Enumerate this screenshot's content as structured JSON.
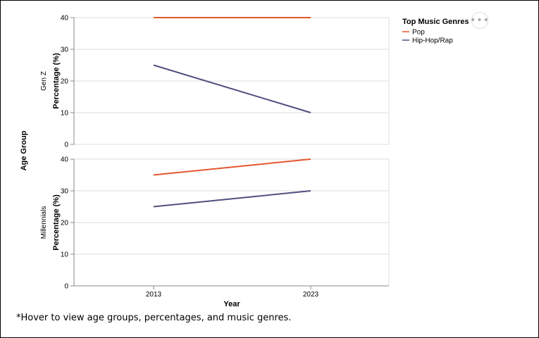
{
  "chart_data": {
    "type": "line",
    "x": [
      "2013",
      "2023"
    ],
    "xlabel": "Year",
    "ylabel": "Percentage (%)",
    "row_title": "Age Group",
    "ylim": [
      0,
      40
    ],
    "yticks": [
      "0",
      "10",
      "20",
      "30",
      "40"
    ],
    "grid": true,
    "legend": {
      "title": "Top Music Genres",
      "position": "top-right",
      "entries": [
        {
          "name": "Pop",
          "color": "#e4572e"
        },
        {
          "name": "Hip-Hop/Rap",
          "color": "#4f4f7f"
        }
      ]
    },
    "facets": [
      {
        "label": "Gen Z",
        "series": [
          {
            "name": "Pop",
            "values": [
              40,
              40
            ]
          },
          {
            "name": "Hip-Hop/Rap",
            "values": [
              25,
              10
            ]
          }
        ]
      },
      {
        "label": "Millennials",
        "series": [
          {
            "name": "Pop",
            "values": [
              35,
              40
            ]
          },
          {
            "name": "Hip-Hop/Rap",
            "values": [
              25,
              30
            ]
          }
        ]
      }
    ]
  },
  "footnote": "*Hover to view age groups, percentages, and music genres.",
  "actions_icon": "ellipsis-icon",
  "actions_label": "•••"
}
